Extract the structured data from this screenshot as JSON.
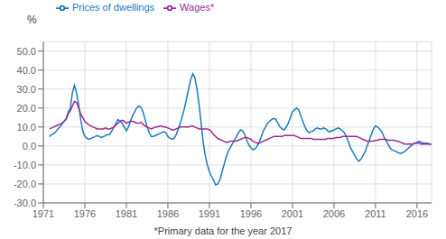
{
  "chart_data": {
    "type": "line",
    "xlabel": "*Primary data for the year 2017",
    "ylabel": "%",
    "xlim": [
      1971,
      2017.75
    ],
    "xticks": [
      1971,
      1976,
      1981,
      1986,
      1991,
      1996,
      2001,
      2006,
      2011,
      2016
    ],
    "ylim": [
      -30,
      55
    ],
    "yticks": [
      {
        "value": -30,
        "label": "-30.0"
      },
      {
        "value": -20,
        "label": "-20.0"
      },
      {
        "value": -10,
        "label": "-10.0"
      },
      {
        "value": 0,
        "label": "0.0"
      },
      {
        "value": 10,
        "label": "10.0"
      },
      {
        "value": 20,
        "label": "20.0"
      },
      {
        "value": 30,
        "label": "30.0"
      },
      {
        "value": 40,
        "label": "40.0"
      },
      {
        "value": 50,
        "label": "50.0"
      }
    ],
    "grid": true,
    "legend": "upper left",
    "x": [
      1971.75,
      1972,
      1972.25,
      1972.5,
      1972.75,
      1973,
      1973.25,
      1973.5,
      1973.75,
      1974,
      1974.25,
      1974.5,
      1974.75,
      1975,
      1975.25,
      1975.5,
      1975.75,
      1976,
      1976.25,
      1976.5,
      1976.75,
      1977,
      1977.25,
      1977.5,
      1977.75,
      1978,
      1978.25,
      1978.5,
      1978.75,
      1979,
      1979.25,
      1979.5,
      1979.75,
      1980,
      1980.25,
      1980.5,
      1980.75,
      1981,
      1981.25,
      1981.5,
      1981.75,
      1982,
      1982.25,
      1982.5,
      1982.75,
      1983,
      1983.25,
      1983.5,
      1983.75,
      1984,
      1984.25,
      1984.5,
      1984.75,
      1985,
      1985.25,
      1985.5,
      1985.75,
      1986,
      1986.25,
      1986.5,
      1986.75,
      1987,
      1987.25,
      1987.5,
      1987.75,
      1988,
      1988.25,
      1988.5,
      1988.75,
      1989,
      1989.25,
      1989.5,
      1989.75,
      1990,
      1990.25,
      1990.5,
      1990.75,
      1991,
      1991.25,
      1991.5,
      1991.75,
      1992,
      1992.25,
      1992.5,
      1992.75,
      1993,
      1993.25,
      1993.5,
      1993.75,
      1994,
      1994.25,
      1994.5,
      1994.75,
      1995,
      1995.25,
      1995.5,
      1995.75,
      1996,
      1996.25,
      1996.5,
      1996.75,
      1997,
      1997.25,
      1997.5,
      1997.75,
      1998,
      1998.25,
      1998.5,
      1998.75,
      1999,
      1999.25,
      1999.5,
      1999.75,
      2000,
      2000.25,
      2000.5,
      2000.75,
      2001,
      2001.25,
      2001.5,
      2001.75,
      2002,
      2002.25,
      2002.5,
      2002.75,
      2003,
      2003.25,
      2003.5,
      2003.75,
      2004,
      2004.25,
      2004.5,
      2004.75,
      2005,
      2005.25,
      2005.5,
      2005.75,
      2006,
      2006.25,
      2006.5,
      2006.75,
      2007,
      2007.25,
      2007.5,
      2007.75,
      2008,
      2008.25,
      2008.5,
      2008.75,
      2009,
      2009.25,
      2009.5,
      2009.75,
      2010,
      2010.25,
      2010.5,
      2010.75,
      2011,
      2011.25,
      2011.5,
      2011.75,
      2012,
      2012.25,
      2012.5,
      2012.75,
      2013,
      2013.25,
      2013.5,
      2013.75,
      2014,
      2014.25,
      2014.5,
      2014.75,
      2015,
      2015.25,
      2015.5,
      2015.75,
      2016,
      2016.25,
      2016.5,
      2016.75,
      2017,
      2017.25,
      2017.5,
      2017.75
    ],
    "series": [
      {
        "name": "Prices of dwellings",
        "color": "#1a7abf",
        "values": [
          5.0,
          6.0,
          6.5,
          7.5,
          9.0,
          10.0,
          11.5,
          13.0,
          14.5,
          18.0,
          20.0,
          28.0,
          32.0,
          28.0,
          22.0,
          14.0,
          8.0,
          5.0,
          4.0,
          3.5,
          4.0,
          4.5,
          5.0,
          5.5,
          5.0,
          4.5,
          5.0,
          5.5,
          6.0,
          6.0,
          8.0,
          10.0,
          12.0,
          14.0,
          13.0,
          12.0,
          10.0,
          8.0,
          10.0,
          13.0,
          16.0,
          18.0,
          20.0,
          21.0,
          20.5,
          18.0,
          14.0,
          10.0,
          7.0,
          5.0,
          5.0,
          5.5,
          6.0,
          6.5,
          7.0,
          7.5,
          7.0,
          5.0,
          4.0,
          3.5,
          4.0,
          6.0,
          9.0,
          12.0,
          16.0,
          20.0,
          25.0,
          30.0,
          35.0,
          38.0,
          36.0,
          30.0,
          22.0,
          12.0,
          2.0,
          -5.0,
          -10.0,
          -13.5,
          -16.0,
          -18.0,
          -20.5,
          -20.0,
          -18.0,
          -14.0,
          -10.0,
          -6.0,
          -3.0,
          -1.0,
          1.0,
          3.0,
          5.0,
          7.0,
          8.5,
          8.0,
          6.0,
          3.0,
          0.5,
          -1.0,
          -2.0,
          -1.5,
          0.0,
          2.0,
          5.0,
          8.0,
          10.0,
          12.0,
          13.0,
          14.0,
          14.5,
          14.0,
          12.0,
          10.0,
          9.0,
          8.5,
          10.0,
          12.0,
          15.0,
          18.0,
          19.0,
          20.0,
          19.0,
          16.0,
          13.0,
          10.0,
          8.0,
          7.0,
          7.5,
          8.0,
          9.0,
          9.5,
          9.0,
          9.0,
          9.5,
          9.0,
          8.0,
          7.5,
          8.0,
          8.5,
          9.0,
          9.5,
          9.0,
          8.0,
          7.0,
          5.0,
          2.0,
          -1.0,
          -3.0,
          -5.0,
          -7.0,
          -8.0,
          -7.0,
          -5.0,
          -3.0,
          0.0,
          3.0,
          6.0,
          9.0,
          10.5,
          10.0,
          9.0,
          7.5,
          5.0,
          3.0,
          1.0,
          -1.0,
          -2.0,
          -2.5,
          -3.0,
          -3.5,
          -4.0,
          -3.5,
          -3.0,
          -2.0,
          -1.0,
          0.0,
          1.0,
          1.5,
          2.0,
          2.5,
          2.0,
          1.5,
          1.5,
          1.5,
          1.0,
          1.0
        ]
      },
      {
        "name": "Wages*",
        "color": "#9b2d8e",
        "values": [
          9.0,
          9.5,
          10.0,
          10.5,
          11.0,
          11.5,
          12.0,
          13.0,
          14.0,
          17.0,
          18.5,
          21.0,
          23.5,
          23.0,
          20.0,
          17.0,
          15.0,
          13.0,
          12.0,
          11.0,
          10.5,
          10.0,
          9.5,
          9.0,
          9.0,
          9.0,
          9.0,
          9.5,
          9.0,
          9.0,
          9.5,
          10.0,
          11.0,
          12.0,
          13.0,
          13.5,
          13.0,
          12.0,
          12.5,
          13.0,
          13.0,
          12.5,
          12.0,
          12.0,
          12.5,
          11.5,
          10.5,
          10.0,
          9.5,
          9.0,
          9.5,
          10.0,
          10.0,
          10.5,
          10.5,
          10.0,
          10.0,
          9.5,
          9.0,
          8.5,
          8.5,
          9.0,
          9.5,
          10.0,
          10.0,
          10.0,
          10.0,
          10.0,
          10.5,
          10.5,
          10.0,
          9.5,
          9.0,
          9.0,
          9.0,
          9.0,
          9.0,
          8.5,
          7.5,
          6.0,
          5.0,
          4.0,
          3.5,
          3.0,
          2.5,
          2.0,
          2.0,
          2.5,
          2.5,
          2.5,
          2.5,
          3.0,
          3.5,
          4.0,
          4.5,
          4.5,
          4.0,
          3.5,
          2.5,
          2.0,
          1.5,
          1.5,
          2.0,
          2.5,
          3.0,
          3.5,
          4.0,
          4.5,
          5.0,
          5.0,
          5.0,
          5.0,
          5.0,
          5.5,
          5.5,
          5.5,
          5.5,
          5.5,
          5.5,
          5.0,
          4.5,
          4.0,
          4.0,
          4.0,
          4.0,
          4.0,
          4.0,
          3.5,
          3.5,
          3.5,
          3.5,
          3.5,
          3.5,
          3.5,
          4.0,
          4.0,
          4.0,
          4.0,
          4.5,
          4.5,
          4.5,
          5.0,
          5.0,
          5.0,
          5.0,
          5.0,
          5.0,
          5.0,
          5.0,
          4.5,
          4.0,
          3.5,
          3.0,
          2.5,
          2.5,
          2.5,
          2.5,
          3.0,
          3.0,
          3.5,
          3.5,
          3.5,
          3.5,
          3.0,
          3.0,
          3.0,
          3.0,
          2.5,
          2.5,
          2.0,
          1.5,
          1.0,
          1.0,
          1.0,
          1.0,
          1.0,
          1.5,
          1.5,
          1.5,
          1.0,
          1.0,
          1.0,
          1.0,
          1.0,
          1.0
        ]
      }
    ]
  }
}
